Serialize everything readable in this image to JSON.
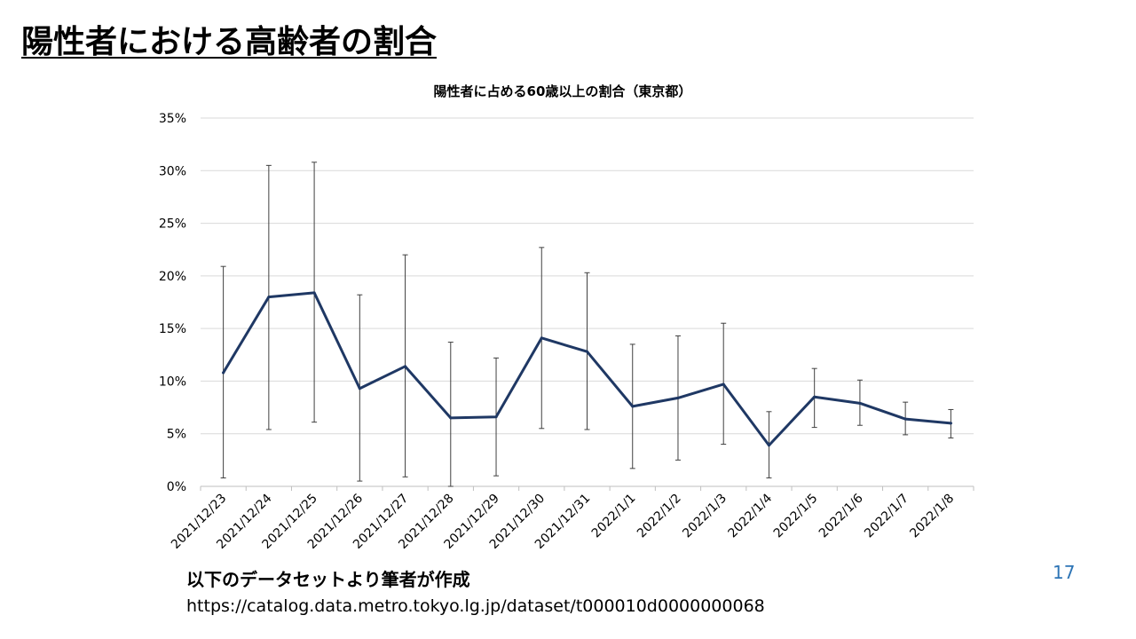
{
  "slide": {
    "title": "陽性者における高齢者の割合",
    "source_heading": "以下のデータセットより筆者が作成",
    "source_url": "https://catalog.data.metro.tokyo.lg.jp/dataset/t000010d0000000068",
    "page_number": "17"
  },
  "colors": {
    "line": "#1f3864",
    "error_bar": "#404040",
    "grid": "#d9d9d9",
    "axis": "#bfbfbf",
    "page_number": "#2e75b6"
  },
  "chart_data": {
    "type": "line",
    "title": "陽性者に占める60歳以上の割合（東京都）",
    "xlabel": "",
    "ylabel": "",
    "ylim": [
      0,
      0.35
    ],
    "yticks": [
      0,
      0.05,
      0.1,
      0.15,
      0.2,
      0.25,
      0.3,
      0.35
    ],
    "ytick_labels": [
      "0%",
      "5%",
      "10%",
      "15%",
      "20%",
      "25%",
      "30%",
      "35%"
    ],
    "grid": true,
    "legend": "none",
    "categories": [
      "2021/12/23",
      "2021/12/24",
      "2021/12/25",
      "2021/12/26",
      "2021/12/27",
      "2021/12/28",
      "2021/12/29",
      "2021/12/30",
      "2021/12/31",
      "2022/1/1",
      "2022/1/2",
      "2022/1/3",
      "2022/1/4",
      "2022/1/5",
      "2022/1/6",
      "2022/1/7",
      "2022/1/8"
    ],
    "series": [
      {
        "values": [
          0.108,
          0.18,
          0.184,
          0.093,
          0.114,
          0.065,
          0.066,
          0.141,
          0.128,
          0.076,
          0.084,
          0.097,
          0.039,
          0.085,
          0.079,
          0.064,
          0.06
        ],
        "error_low": [
          0.008,
          0.054,
          0.061,
          0.005,
          0.009,
          0.0,
          0.01,
          0.055,
          0.054,
          0.017,
          0.025,
          0.04,
          0.008,
          0.056,
          0.058,
          0.049,
          0.046
        ],
        "error_high": [
          0.209,
          0.305,
          0.308,
          0.182,
          0.22,
          0.137,
          0.122,
          0.227,
          0.203,
          0.135,
          0.143,
          0.155,
          0.071,
          0.112,
          0.101,
          0.08,
          0.073
        ]
      }
    ]
  }
}
